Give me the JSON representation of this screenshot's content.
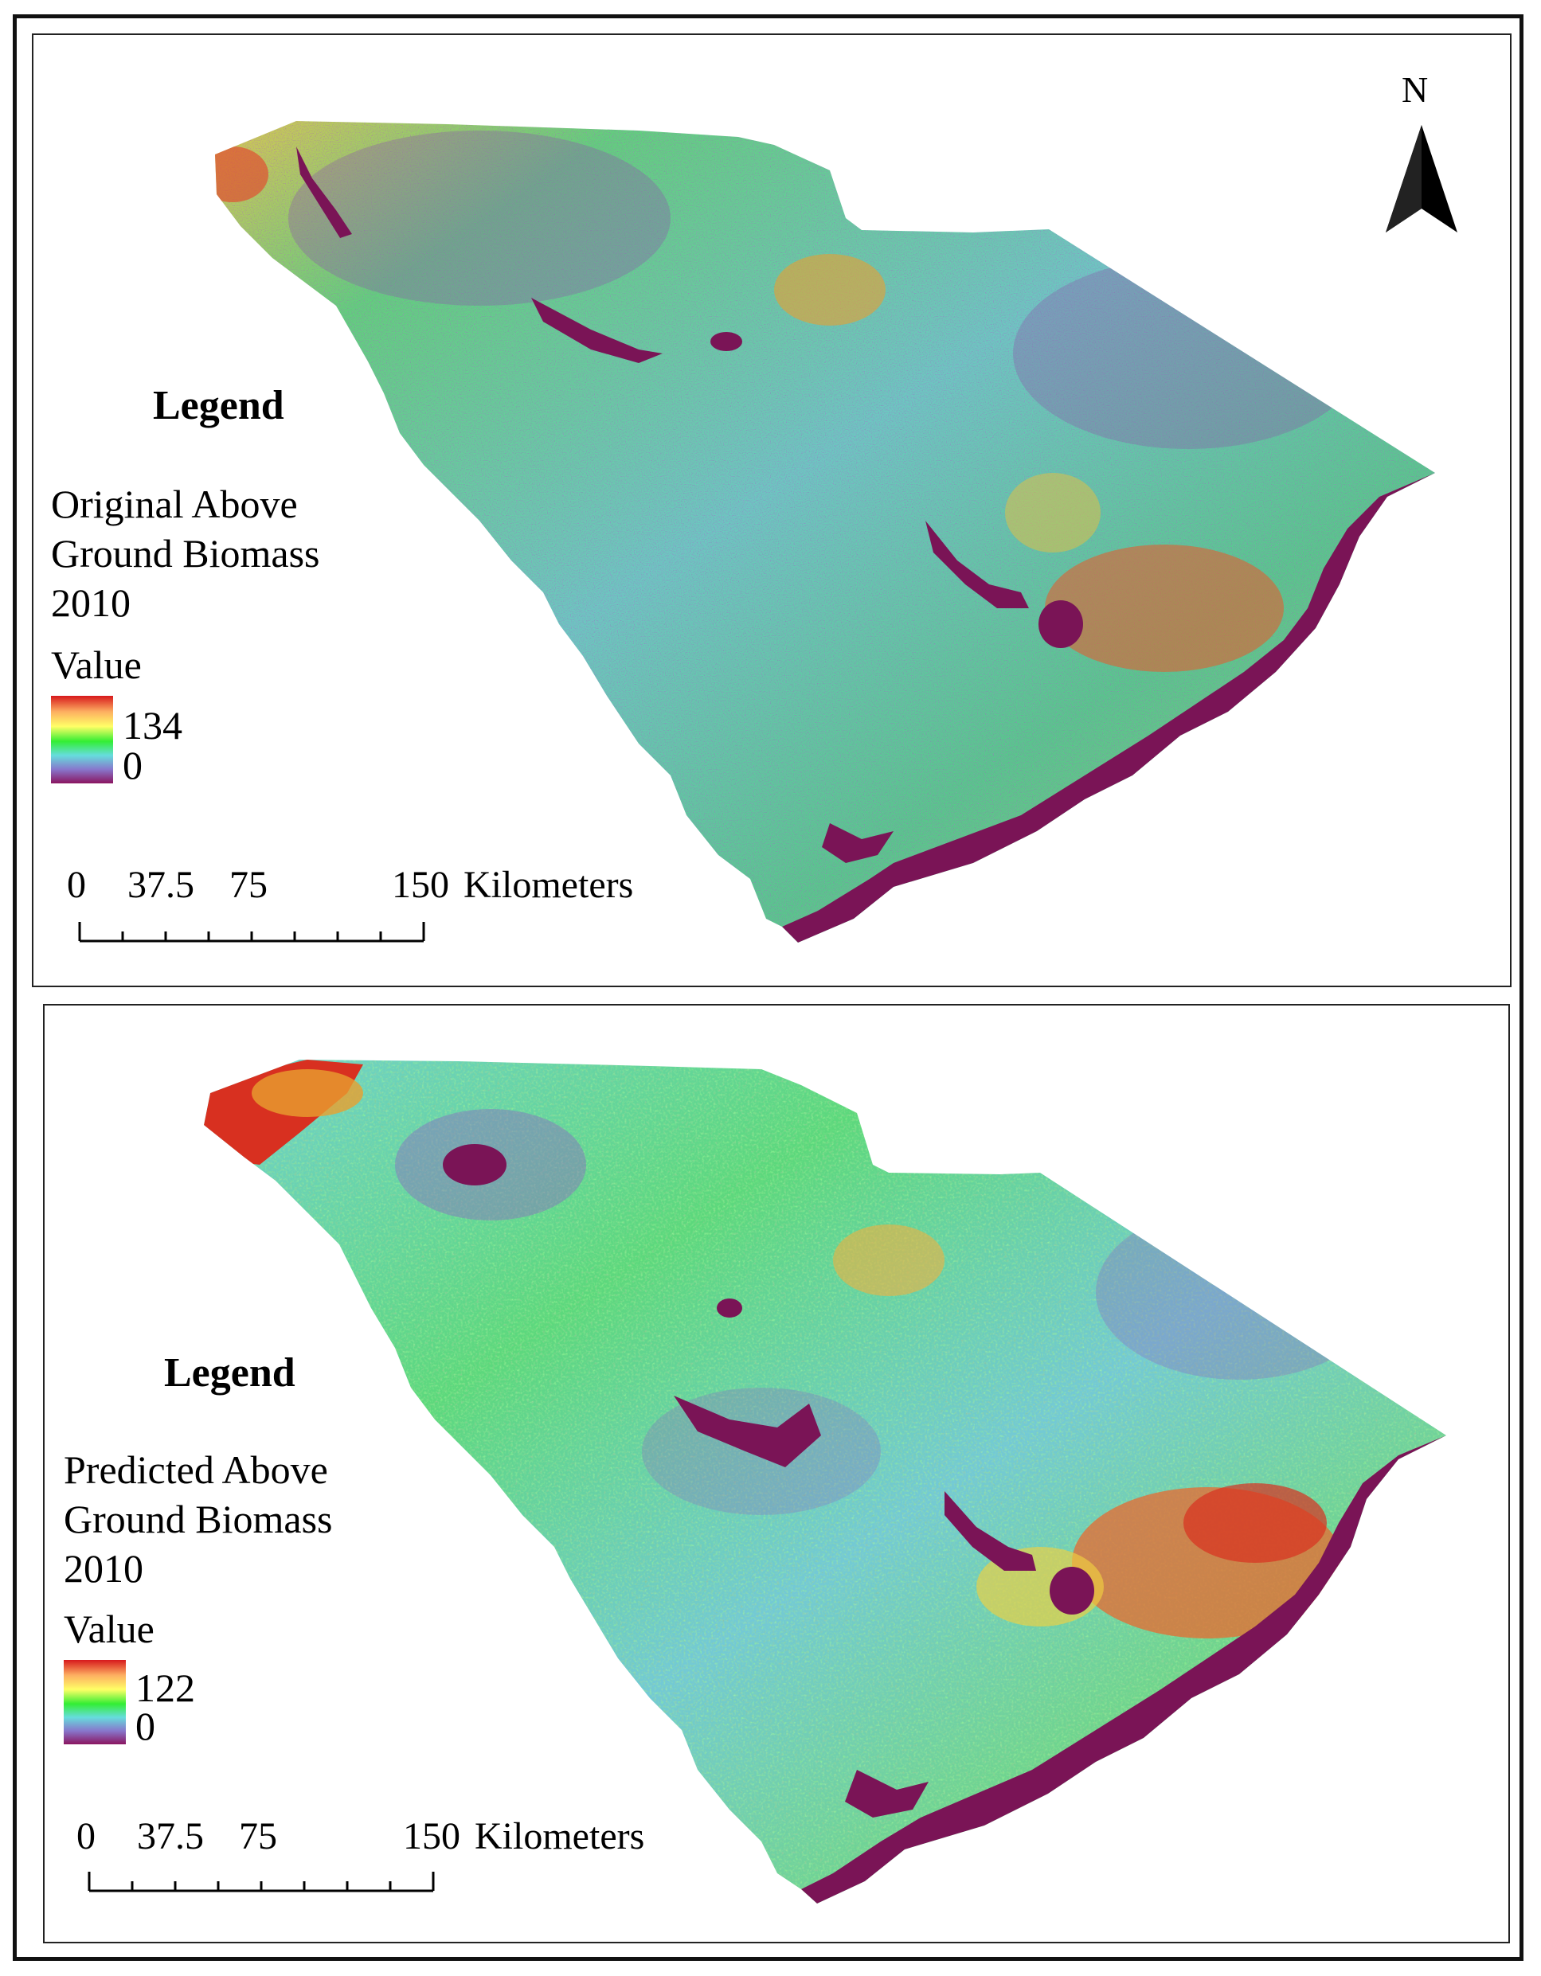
{
  "north_arrow": {
    "label": "N"
  },
  "maps": [
    {
      "legend_title": "Legend",
      "layer_lines": [
        "Original Above",
        "Ground Biomass",
        "2010"
      ],
      "value_label": "Value",
      "max_value": "134",
      "min_value": "0",
      "scale": {
        "ticks": [
          "0",
          "37.5",
          "75",
          "150"
        ],
        "unit": "Kilometers"
      }
    },
    {
      "legend_title": "Legend",
      "layer_lines": [
        "Predicted Above",
        "Ground Biomass",
        "2010"
      ],
      "value_label": "Value",
      "max_value": "122",
      "min_value": "0",
      "scale": {
        "ticks": [
          "0",
          "37.5",
          "75",
          "150"
        ],
        "unit": "Kilometers"
      }
    }
  ],
  "colors": {
    "ramp": [
      "#d7191c",
      "#fdae61",
      "#ffff66",
      "#33ee33",
      "#66dddd",
      "#8877cc",
      "#8a1560"
    ],
    "water": "#7a1456"
  }
}
